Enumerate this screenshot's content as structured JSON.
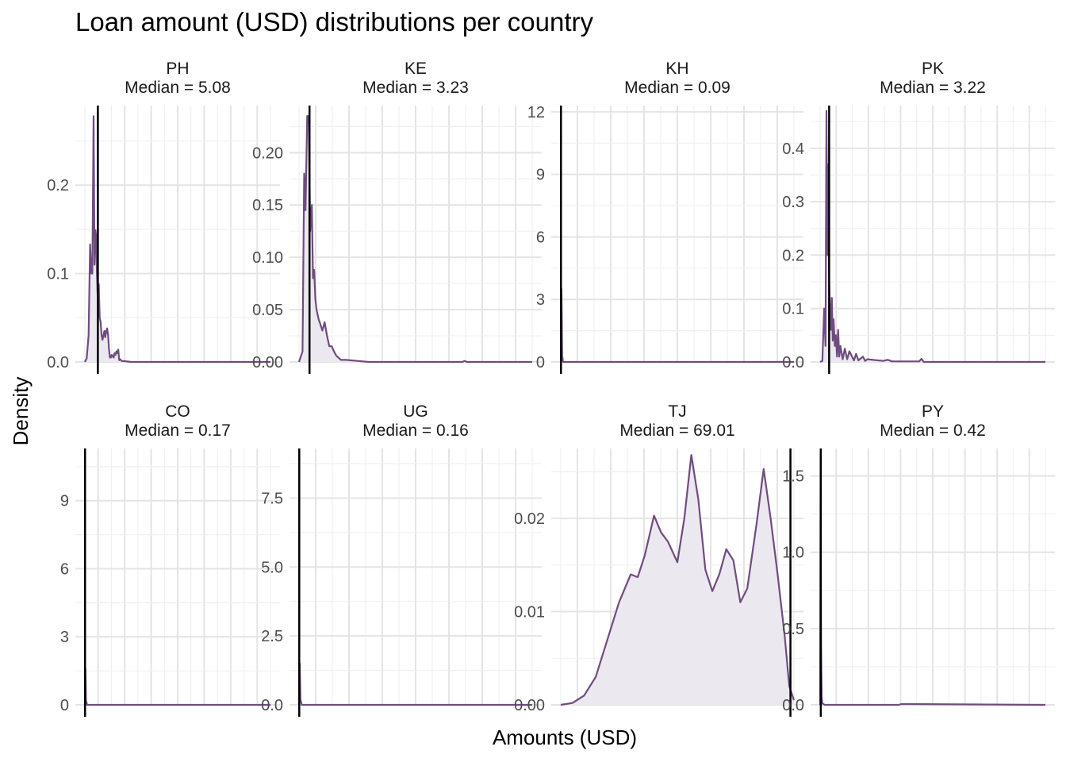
{
  "chart_data": {
    "type": "area",
    "title": "Loan amount (USD) distributions per country",
    "xlabel": "Amounts (USD)",
    "ylabel": "Density",
    "grid": true,
    "legend": "none",
    "line_color": "#6f4c80",
    "fill_color": "#ece8ef",
    "median_line_color": "#000000",
    "median_label_prefix": "Median = ",
    "panels": [
      {
        "country": "PH",
        "median": "5.08",
        "ylim": [
          0,
          0.29
        ],
        "yticks": [
          "0.0",
          "0.1",
          "0.2"
        ],
        "ytick_values": [
          0,
          0.1,
          0.2
        ],
        "median_x": 0.07,
        "x": [
          0,
          0.01,
          0.02,
          0.028,
          0.035,
          0.04,
          0.047,
          0.052,
          0.057,
          0.062,
          0.065,
          0.07,
          0.075,
          0.08,
          0.085,
          0.09,
          0.095,
          0.1,
          0.105,
          0.11,
          0.115,
          0.12,
          0.125,
          0.13,
          0.135,
          0.14,
          0.145,
          0.155,
          0.16,
          0.165,
          0.17,
          0.175,
          0.18,
          0.185,
          0.19,
          0.2,
          0.21,
          0.25,
          0.3,
          0.5,
          1.0
        ],
        "y": [
          0,
          0.004,
          0.03,
          0.133,
          0.1,
          0.1,
          0.278,
          0.11,
          0.149,
          0.14,
          0.1,
          0.065,
          0.088,
          0.05,
          0.045,
          0.03,
          0.025,
          0.03,
          0.035,
          0.028,
          0.035,
          0.038,
          0.03,
          0.015,
          0.005,
          0.005,
          0.008,
          0.005,
          0.01,
          0.008,
          0.012,
          0.01,
          0.014,
          0.002,
          0.003,
          0.001,
          0.001,
          0,
          0,
          0,
          0
        ]
      },
      {
        "country": "KE",
        "median": "3.23",
        "ylim": [
          0,
          0.245
        ],
        "yticks": [
          "0.00",
          "0.05",
          "0.10",
          "0.15",
          "0.20"
        ],
        "ytick_values": [
          0,
          0.05,
          0.1,
          0.15,
          0.2
        ],
        "median_x": 0.045,
        "x": [
          0,
          0.015,
          0.022,
          0.028,
          0.035,
          0.042,
          0.048,
          0.055,
          0.06,
          0.065,
          0.07,
          0.075,
          0.08,
          0.085,
          0.09,
          0.1,
          0.11,
          0.12,
          0.13,
          0.14,
          0.15,
          0.16,
          0.18,
          0.2,
          0.25,
          0.3,
          0.5,
          0.7,
          0.71,
          0.72,
          1.0
        ],
        "y": [
          0,
          0.01,
          0.18,
          0.145,
          0.235,
          0.235,
          0.125,
          0.15,
          0.08,
          0.088,
          0.06,
          0.05,
          0.045,
          0.04,
          0.037,
          0.03,
          0.038,
          0.025,
          0.015,
          0.015,
          0.01,
          0.006,
          0.002,
          0.002,
          0.001,
          0,
          0,
          0,
          0.001,
          0,
          0
        ]
      },
      {
        "country": "KH",
        "median": "0.09",
        "ylim": [
          0,
          12.3
        ],
        "yticks": [
          "0",
          "3",
          "6",
          "9",
          "12"
        ],
        "ytick_values": [
          0,
          3,
          6,
          9,
          12
        ],
        "median_x": 0.001,
        "x": [
          0,
          0.003,
          0.006,
          0.01,
          1.0
        ],
        "y": [
          0,
          3.5,
          0.3,
          0,
          0
        ]
      },
      {
        "country": "PK",
        "median": "3.22",
        "ylim": [
          0,
          0.48
        ],
        "yticks": [
          "0.0",
          "0.1",
          "0.2",
          "0.3",
          "0.4"
        ],
        "ytick_values": [
          0,
          0.1,
          0.2,
          0.3,
          0.4
        ],
        "median_x": 0.04,
        "x": [
          0,
          0.01,
          0.018,
          0.024,
          0.028,
          0.032,
          0.036,
          0.04,
          0.044,
          0.048,
          0.052,
          0.056,
          0.06,
          0.065,
          0.07,
          0.075,
          0.08,
          0.085,
          0.09,
          0.1,
          0.11,
          0.12,
          0.13,
          0.15,
          0.16,
          0.17,
          0.19,
          0.2,
          0.21,
          0.28,
          0.3,
          0.32,
          0.44,
          0.45,
          0.46,
          0.5,
          1.0
        ],
        "y": [
          0,
          0.002,
          0.1,
          0.03,
          0.47,
          0.2,
          0.37,
          0.15,
          0.1,
          0.06,
          0.12,
          0.04,
          0.08,
          0.03,
          0.05,
          0.01,
          0.06,
          0.01,
          0.03,
          0.005,
          0.025,
          0.005,
          0.02,
          0.003,
          0.015,
          0.003,
          0.01,
          0.002,
          0.005,
          0.002,
          0.004,
          0.001,
          0.001,
          0.006,
          0,
          0,
          0
        ]
      },
      {
        "country": "CO",
        "median": "0.17",
        "ylim": [
          0,
          11.3
        ],
        "yticks": [
          "0",
          "3",
          "6",
          "9"
        ],
        "ytick_values": [
          0,
          3,
          6,
          9
        ],
        "median_x": 0.001,
        "x": [
          0,
          0.003,
          0.006,
          0.012,
          1.0
        ],
        "y": [
          0,
          1.6,
          0.2,
          0,
          0
        ]
      },
      {
        "country": "UG",
        "median": "0.16",
        "ylim": [
          0,
          9.3
        ],
        "yticks": [
          "0.0",
          "2.5",
          "5.0",
          "7.5"
        ],
        "ytick_values": [
          0,
          2.5,
          5,
          7.5
        ],
        "median_x": 0.001,
        "x": [
          0,
          0.003,
          0.006,
          0.012,
          1.0
        ],
        "y": [
          0,
          1.5,
          0.2,
          0,
          0
        ]
      },
      {
        "country": "TJ",
        "median": "69.01",
        "ylim": [
          0,
          0.0275
        ],
        "yticks": [
          "0.00",
          "0.01",
          "0.02"
        ],
        "ytick_values": [
          0,
          0.01,
          0.02
        ],
        "median_x": 0.985,
        "x": [
          0,
          0.05,
          0.1,
          0.15,
          0.2,
          0.25,
          0.3,
          0.33,
          0.36,
          0.4,
          0.43,
          0.46,
          0.5,
          0.53,
          0.56,
          0.59,
          0.62,
          0.65,
          0.68,
          0.71,
          0.74,
          0.77,
          0.8,
          0.84,
          0.87,
          0.9,
          0.93,
          0.96,
          0.98,
          1.0
        ],
        "y": [
          0,
          0.0002,
          0.001,
          0.003,
          0.007,
          0.011,
          0.014,
          0.0137,
          0.016,
          0.0203,
          0.0185,
          0.0175,
          0.0153,
          0.02,
          0.0268,
          0.022,
          0.0145,
          0.0122,
          0.014,
          0.0167,
          0.0155,
          0.011,
          0.0125,
          0.0195,
          0.0253,
          0.02,
          0.014,
          0.0075,
          0.002,
          0.0005
        ]
      },
      {
        "country": "PY",
        "median": "0.42",
        "ylim": [
          0,
          1.68
        ],
        "yticks": [
          "0.0",
          "0.5",
          "1.0",
          "1.5"
        ],
        "ytick_values": [
          0,
          0.5,
          1.0,
          1.5
        ],
        "median_x": 0.003,
        "x": [
          0,
          0.002,
          0.004,
          0.007,
          0.01,
          0.02,
          0.35,
          0.36,
          1.0
        ],
        "y": [
          0,
          1.65,
          0.4,
          0.05,
          0.01,
          0,
          0,
          0.005,
          0
        ]
      }
    ]
  }
}
